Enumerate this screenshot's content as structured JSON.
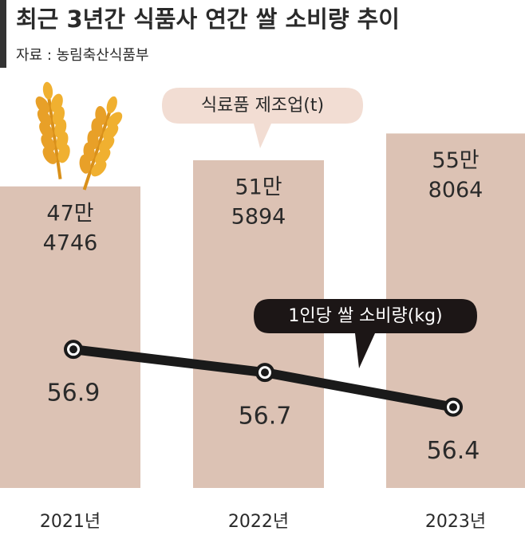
{
  "chart_data": {
    "type": "bar",
    "title": "최근 3년간 식품사 연간 쌀 소비량 추이",
    "subtitle": "자료 : 농림축산식품부",
    "categories": [
      "2021년",
      "2022년",
      "2023년"
    ],
    "series": [
      {
        "name": "식료품 제조업(t)",
        "type": "bar",
        "color": "#dcc2b4",
        "values": [
          474746,
          515894,
          558064
        ],
        "value_labels": [
          [
            "47만",
            "4746"
          ],
          [
            "51만",
            "5894"
          ],
          [
            "55만",
            "8064"
          ]
        ]
      },
      {
        "name": "1인당 쌀 소비량(kg)",
        "type": "line",
        "axis": "y2",
        "color": "#1a1a1a",
        "values": [
          56.9,
          56.7,
          56.4
        ]
      }
    ],
    "ylim": [
      0,
      600000
    ],
    "y2lim": [
      55.7,
      59.0
    ]
  }
}
